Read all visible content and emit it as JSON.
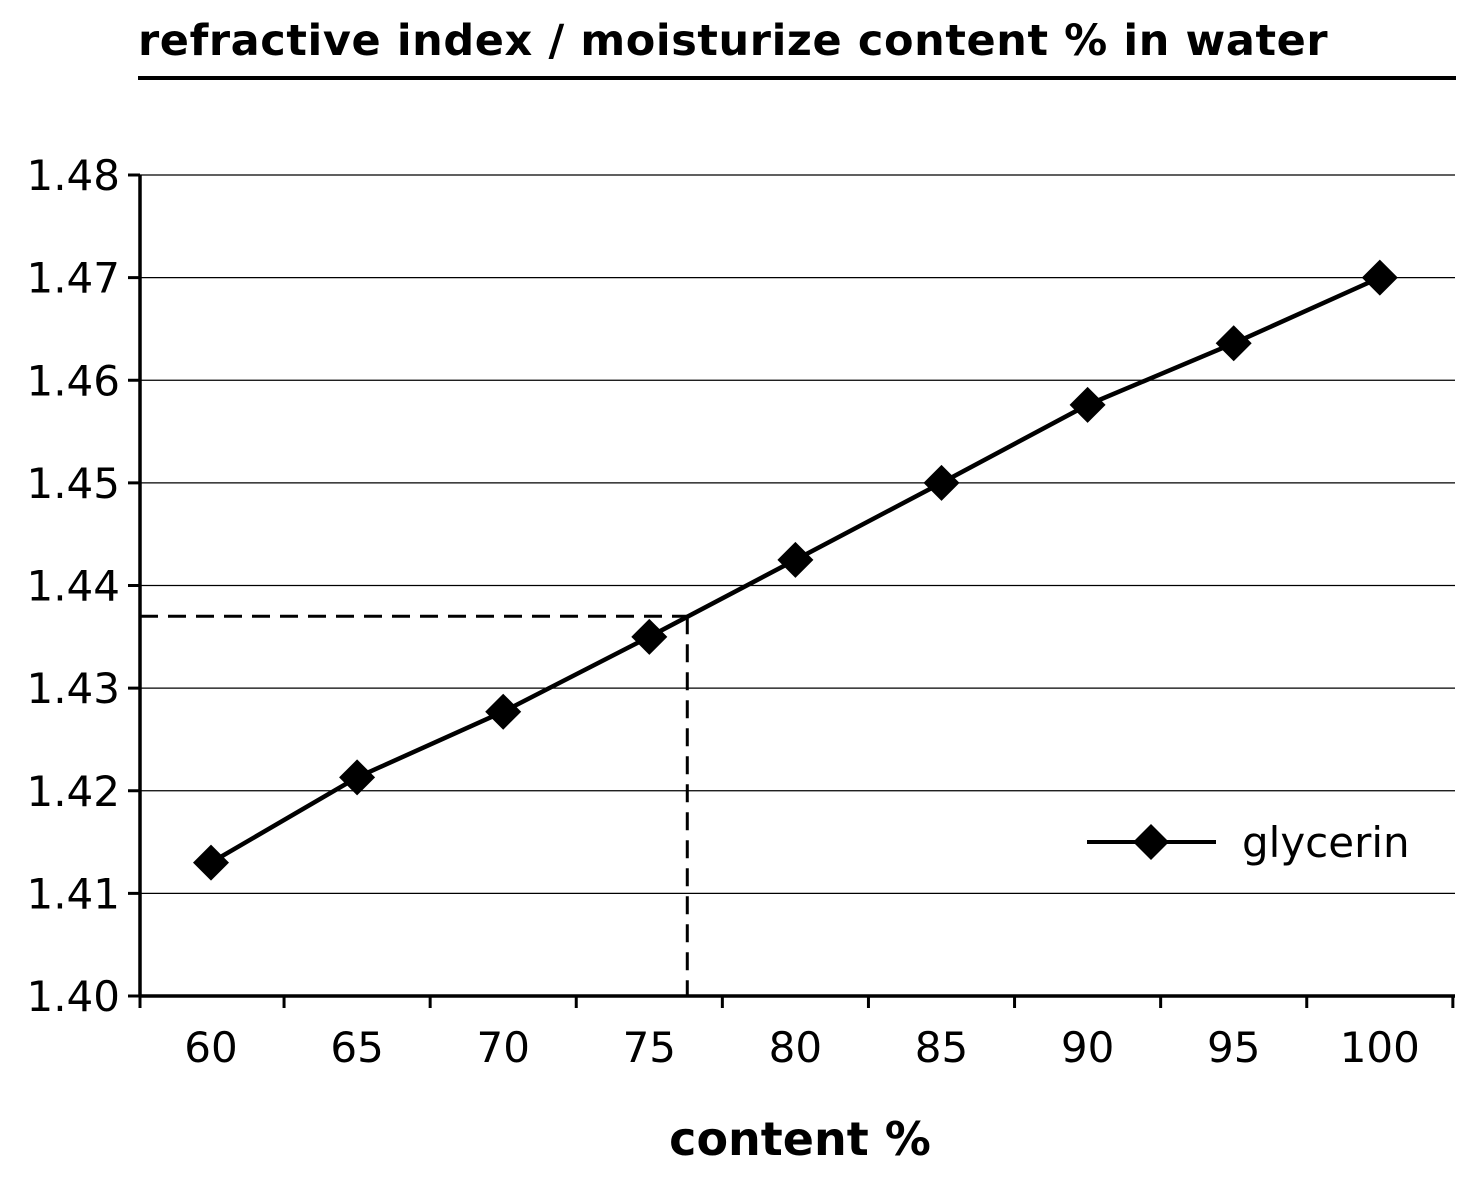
{
  "chart_data": {
    "type": "line",
    "title": "refractive index / moisturize content % in water",
    "xlabel": "content %",
    "ylabel": "",
    "x": [
      60,
      65,
      70,
      75,
      80,
      85,
      90,
      95,
      100
    ],
    "xticks": [
      "60",
      "65",
      "70",
      "75",
      "80",
      "85",
      "90",
      "95",
      "100"
    ],
    "yticks": [
      "1.40",
      "1.41",
      "1.42",
      "1.43",
      "1.44",
      "1.45",
      "1.46",
      "1.47",
      "1.48"
    ],
    "ylim": [
      1.4,
      1.48
    ],
    "grid": "horizontal",
    "legend_position": "bottom-right",
    "series": [
      {
        "name": "glycerin",
        "color": "#000000",
        "marker": "diamond",
        "values": [
          1.413,
          1.4213,
          1.4277,
          1.435,
          1.4425,
          1.45,
          1.4576,
          1.4636,
          1.47
        ]
      }
    ],
    "reference": {
      "x": 76.3,
      "y": 1.437,
      "style": "dashed"
    }
  }
}
